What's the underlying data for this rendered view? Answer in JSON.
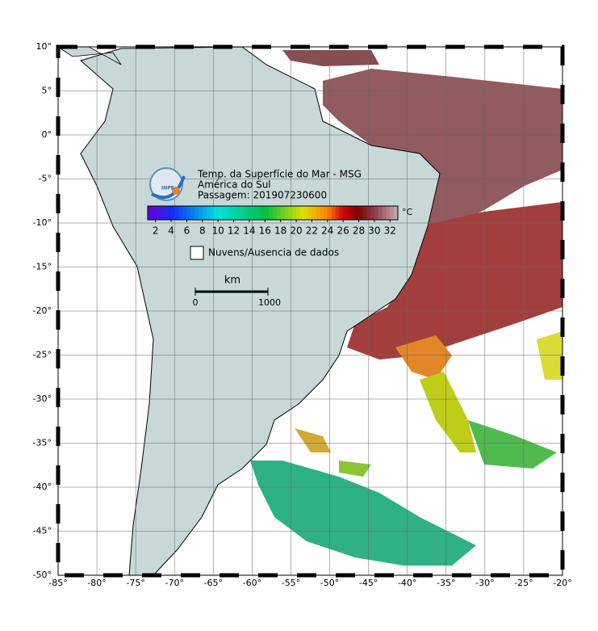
{
  "map": {
    "title_lines": [
      "Temp. da Superfície do Mar - MSG",
      "América do Sul",
      "Passagem: 201907230600"
    ],
    "logo_text": "INPE",
    "colorbar": {
      "range": [
        1,
        33
      ],
      "ticks": [
        2,
        4,
        6,
        8,
        10,
        12,
        14,
        16,
        18,
        20,
        22,
        24,
        26,
        28,
        30,
        32
      ],
      "unit": "°C"
    },
    "legend": "Nuvens/Ausencia de dados",
    "scale_bar": {
      "unit": "km",
      "labels": [
        "0",
        "1000"
      ]
    },
    "lonlim": [
      -85,
      -20
    ],
    "latlim": [
      -50,
      10
    ],
    "lon_ticks": [
      {
        "value": -85,
        "label": "-85°"
      },
      {
        "value": -80,
        "label": "-80°"
      },
      {
        "value": -75,
        "label": "-75°"
      },
      {
        "value": -70,
        "label": "-70°"
      },
      {
        "value": -65,
        "label": "-65°"
      },
      {
        "value": -60,
        "label": "-60°"
      },
      {
        "value": -55,
        "label": "-55°"
      },
      {
        "value": -50,
        "label": "-50°"
      },
      {
        "value": -45,
        "label": "-45°"
      },
      {
        "value": -40,
        "label": "-40°"
      },
      {
        "value": -35,
        "label": "-35°"
      },
      {
        "value": -30,
        "label": "-30°"
      },
      {
        "value": -25,
        "label": "-25°"
      },
      {
        "value": -20,
        "label": "-20°"
      }
    ],
    "lat_ticks": [
      {
        "value": 10,
        "label": "10°"
      },
      {
        "value": 5,
        "label": "5°"
      },
      {
        "value": 0,
        "label": "0°"
      },
      {
        "value": -5,
        "label": "-5°"
      },
      {
        "value": -10,
        "label": "-10°"
      },
      {
        "value": -15,
        "label": "-15°"
      },
      {
        "value": -20,
        "label": "-20°"
      },
      {
        "value": -25,
        "label": "-25°"
      },
      {
        "value": -30,
        "label": "-30°"
      },
      {
        "value": -35,
        "label": "-35°"
      },
      {
        "value": -40,
        "label": "-40°"
      },
      {
        "value": -45,
        "label": "-45°"
      },
      {
        "value": -50,
        "label": "-50°"
      }
    ]
  }
}
